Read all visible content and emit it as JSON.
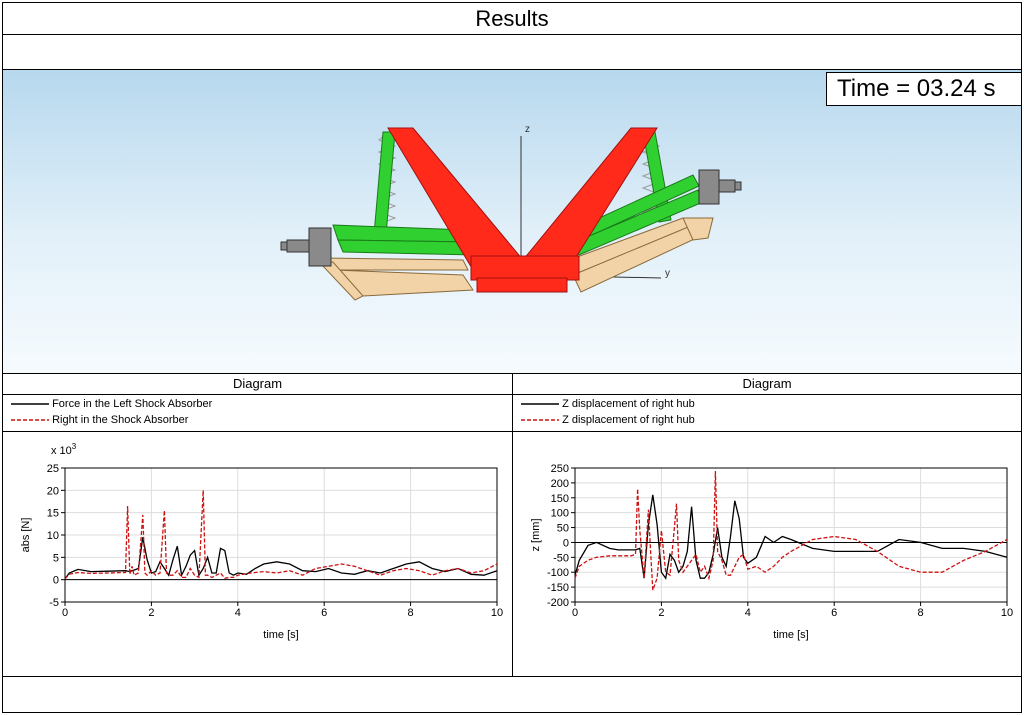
{
  "window": {
    "title": "Results"
  },
  "viewport": {
    "time_label": "Time = 03.24 s",
    "axis_z": "z",
    "axis_y": "y"
  },
  "colors": {
    "series1": "#000000",
    "series2": "#cc1111",
    "chassis": "#ff2a1a",
    "arm": "#2fd02f",
    "beam": "#f2d3a8"
  },
  "diagrams": [
    {
      "header": "Diagram",
      "legend": [
        "Force in the Left Shock Absorber",
        "Right in the Shock Absorber"
      ]
    },
    {
      "header": "Diagram",
      "legend": [
        "Z displacement of right hub",
        "Z displacement of right hub"
      ]
    }
  ],
  "chart_data": [
    {
      "type": "line",
      "title": "",
      "xlabel": "time [s]",
      "ylabel": "abs [N]",
      "y_multiplier": "x 10^3",
      "xlim": [
        0,
        10
      ],
      "ylim": [
        -5,
        25
      ],
      "xticks": [
        0,
        2,
        4,
        6,
        8,
        10
      ],
      "yticks": [
        -5,
        0,
        5,
        10,
        15,
        20,
        25
      ],
      "grid": true,
      "legend_position": "top",
      "series": [
        {
          "name": "Force in the Left Shock Absorber",
          "x": [
            0,
            0.1,
            0.3,
            0.6,
            1.0,
            1.4,
            1.5,
            1.7,
            1.8,
            1.9,
            2.0,
            2.1,
            2.2,
            2.3,
            2.4,
            2.5,
            2.6,
            2.7,
            2.8,
            2.9,
            3.0,
            3.1,
            3.2,
            3.3,
            3.4,
            3.5,
            3.6,
            3.7,
            3.8,
            3.9,
            4.0,
            4.2,
            4.4,
            4.6,
            4.9,
            5.2,
            5.5,
            5.8,
            6.1,
            6.4,
            6.7,
            7.0,
            7.3,
            7.6,
            7.9,
            8.2,
            8.5,
            8.8,
            9.1,
            9.4,
            9.7,
            10.0
          ],
          "y": [
            0.2,
            1.5,
            2.3,
            1.8,
            1.9,
            2.0,
            1.8,
            2.5,
            9.5,
            4.5,
            1.5,
            1.8,
            4.0,
            2.5,
            1.0,
            4.5,
            7.5,
            1.0,
            3.0,
            5.5,
            6.5,
            1.0,
            2.5,
            5.0,
            1.5,
            1.5,
            7.0,
            6.5,
            1.5,
            1.0,
            1.5,
            1.2,
            2.5,
            3.5,
            4.0,
            3.5,
            2.0,
            1.8,
            2.5,
            1.5,
            1.2,
            2.0,
            1.5,
            2.5,
            3.5,
            4.0,
            2.5,
            1.8,
            2.5,
            1.2,
            1.0,
            2.0
          ]
        },
        {
          "name": "Right in the Shock Absorber",
          "x": [
            0,
            0.1,
            0.3,
            0.6,
            1.0,
            1.4,
            1.45,
            1.5,
            1.55,
            1.6,
            1.7,
            1.8,
            1.85,
            1.9,
            2.0,
            2.1,
            2.2,
            2.3,
            2.35,
            2.4,
            2.5,
            2.6,
            2.7,
            2.8,
            2.9,
            3.0,
            3.1,
            3.2,
            3.25,
            3.3,
            3.4,
            3.5,
            3.6,
            3.7,
            3.8,
            3.9,
            4.0,
            4.3,
            4.6,
            4.9,
            5.2,
            5.5,
            5.8,
            6.1,
            6.4,
            6.7,
            7.0,
            7.3,
            7.6,
            7.9,
            8.2,
            8.5,
            8.8,
            9.1,
            9.4,
            9.7,
            10.0
          ],
          "y": [
            0.2,
            1.2,
            1.6,
            1.4,
            1.5,
            1.6,
            16.5,
            1.2,
            3.0,
            1.0,
            1.5,
            14.5,
            1.5,
            1.0,
            2.0,
            1.0,
            1.5,
            15.5,
            1.5,
            1.0,
            1.0,
            2.0,
            0.5,
            0.5,
            2.5,
            1.0,
            0.5,
            20.0,
            1.0,
            1.0,
            0.5,
            1.0,
            1.5,
            0.3,
            0.5,
            0.5,
            1.0,
            1.5,
            1.8,
            1.5,
            2.0,
            1.0,
            2.5,
            3.0,
            3.5,
            3.0,
            2.0,
            1.0,
            2.0,
            2.5,
            2.0,
            1.0,
            2.0,
            2.5,
            1.5,
            2.0,
            3.5
          ]
        }
      ]
    },
    {
      "type": "line",
      "title": "",
      "xlabel": "time [s]",
      "ylabel": "z [mm]",
      "xlim": [
        0,
        10
      ],
      "ylim": [
        -200,
        250
      ],
      "xticks": [
        0,
        2,
        4,
        6,
        8,
        10
      ],
      "yticks": [
        -200,
        -150,
        -100,
        -50,
        0,
        50,
        100,
        150,
        200,
        250
      ],
      "grid": true,
      "legend_position": "top",
      "series": [
        {
          "name": "Z displacement of right hub",
          "x": [
            0,
            0.1,
            0.3,
            0.5,
            0.8,
            1.0,
            1.4,
            1.5,
            1.6,
            1.7,
            1.8,
            1.9,
            2.0,
            2.1,
            2.2,
            2.3,
            2.4,
            2.5,
            2.6,
            2.7,
            2.8,
            2.9,
            3.0,
            3.1,
            3.2,
            3.3,
            3.4,
            3.5,
            3.6,
            3.7,
            3.8,
            3.9,
            4.0,
            4.2,
            4.4,
            4.6,
            4.8,
            5.0,
            5.5,
            6.0,
            6.5,
            7.0,
            7.5,
            8.0,
            8.5,
            9.0,
            9.5,
            10.0
          ],
          "y": [
            -110,
            -60,
            -10,
            0,
            -20,
            -25,
            -25,
            -20,
            -120,
            60,
            160,
            60,
            -100,
            -120,
            -40,
            -60,
            -100,
            -80,
            -30,
            120,
            -60,
            -120,
            -120,
            -100,
            -40,
            50,
            -50,
            -80,
            20,
            140,
            80,
            -50,
            -70,
            -50,
            20,
            0,
            20,
            10,
            -20,
            -30,
            -30,
            -30,
            10,
            0,
            -20,
            -20,
            -30,
            -50
          ]
        },
        {
          "name": "Z displacement of right hub",
          "x": [
            0,
            0.1,
            0.3,
            0.5,
            0.8,
            1.0,
            1.3,
            1.4,
            1.45,
            1.5,
            1.55,
            1.6,
            1.7,
            1.75,
            1.8,
            1.9,
            2.0,
            2.1,
            2.2,
            2.3,
            2.35,
            2.4,
            2.5,
            2.6,
            2.7,
            2.8,
            2.9,
            3.0,
            3.1,
            3.2,
            3.25,
            3.3,
            3.4,
            3.5,
            3.6,
            3.7,
            3.8,
            3.9,
            4.0,
            4.2,
            4.4,
            4.6,
            4.8,
            5.0,
            5.5,
            6.0,
            6.5,
            7.0,
            7.5,
            8.0,
            8.5,
            9.0,
            9.5,
            10.0
          ],
          "y": [
            -120,
            -80,
            -60,
            -50,
            -45,
            -45,
            -45,
            -40,
            180,
            40,
            -40,
            -120,
            110,
            -30,
            -160,
            -120,
            40,
            -100,
            -110,
            50,
            130,
            -60,
            -100,
            -80,
            -60,
            -40,
            -100,
            -80,
            -120,
            -60,
            240,
            -30,
            -60,
            -110,
            -110,
            -80,
            -50,
            -40,
            -90,
            -80,
            -100,
            -80,
            -50,
            -30,
            10,
            20,
            10,
            -30,
            -80,
            -100,
            -100,
            -60,
            -30,
            10
          ]
        }
      ]
    }
  ]
}
